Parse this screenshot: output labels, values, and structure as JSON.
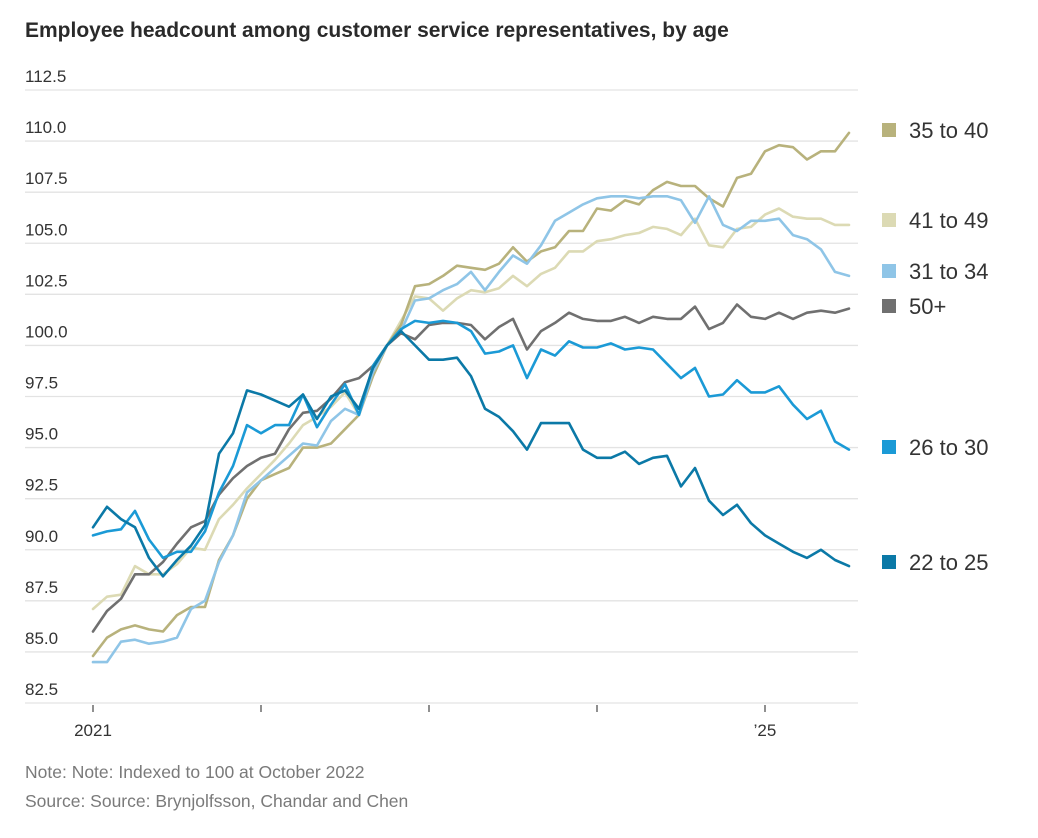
{
  "chart_data": {
    "type": "line",
    "title": "Employee headcount among customer service representatives, by age",
    "xlabel": "",
    "ylabel": "",
    "ylim": [
      82.5,
      112.5
    ],
    "yticks": [
      112.5,
      110.0,
      107.5,
      105.0,
      102.5,
      100.0,
      97.5,
      95.0,
      92.5,
      90.0,
      87.5,
      85.0,
      82.5
    ],
    "ytick_labels": [
      "112.5",
      "110.0",
      "107.5",
      "105.0",
      "102.5",
      "100.0",
      "97.5",
      "95.0",
      "92.5",
      "90.0",
      "87.5",
      "85.0",
      "82.5"
    ],
    "x_frequency": "monthly",
    "x_start": "2021-01",
    "x_end": "2025-07",
    "xticks": [
      {
        "year": 2021,
        "label": "2021"
      },
      {
        "year": 2022,
        "label": ""
      },
      {
        "year": 2023,
        "label": ""
      },
      {
        "year": 2024,
        "label": ""
      },
      {
        "year": 2025,
        "label": "’25"
      }
    ],
    "grid": true,
    "legend_position": "right",
    "series": [
      {
        "name": "41 to 49",
        "color": "#dcdab4",
        "values": [
          87.1,
          87.7,
          87.8,
          89.2,
          88.8,
          88.8,
          89.3,
          90.1,
          90.0,
          91.5,
          92.2,
          93.0,
          93.7,
          94.4,
          95.2,
          96.1,
          96.5,
          97.0,
          97.7,
          96.6,
          99.0,
          100.0,
          101.2,
          102.4,
          102.3,
          101.7,
          102.3,
          102.7,
          102.6,
          102.8,
          103.4,
          102.9,
          103.5,
          103.8,
          104.6,
          104.6,
          105.1,
          105.2,
          105.4,
          105.5,
          105.8,
          105.7,
          105.4,
          106.2,
          104.9,
          104.8,
          105.7,
          105.8,
          106.4,
          106.7,
          106.3,
          106.2,
          106.2,
          105.9,
          105.9
        ]
      },
      {
        "name": "35 to 40",
        "color": "#b8b27c",
        "values": [
          84.8,
          85.7,
          86.1,
          86.3,
          86.1,
          86.0,
          86.8,
          87.2,
          87.2,
          89.5,
          90.7,
          92.5,
          93.4,
          93.7,
          94.0,
          95.0,
          95.0,
          95.2,
          95.9,
          96.6,
          98.5,
          100.0,
          101.0,
          102.9,
          103.0,
          103.4,
          103.9,
          103.8,
          103.7,
          104.0,
          104.8,
          104.1,
          104.6,
          104.8,
          105.6,
          105.6,
          106.7,
          106.6,
          107.1,
          106.9,
          107.6,
          108.0,
          107.8,
          107.8,
          107.2,
          106.8,
          108.2,
          108.4,
          109.5,
          109.8,
          109.7,
          109.1,
          109.5,
          109.5,
          110.4
        ]
      },
      {
        "name": "31 to 34",
        "color": "#8fc5e7",
        "values": [
          84.5,
          84.5,
          85.5,
          85.6,
          85.4,
          85.5,
          85.7,
          87.1,
          87.5,
          89.4,
          90.7,
          92.8,
          93.4,
          94.0,
          94.6,
          95.2,
          95.1,
          96.3,
          96.9,
          96.6,
          98.7,
          100.0,
          100.7,
          102.2,
          102.3,
          102.7,
          103.0,
          103.6,
          102.7,
          103.6,
          104.4,
          104.0,
          104.9,
          106.1,
          106.5,
          106.9,
          107.2,
          107.3,
          107.3,
          107.2,
          107.3,
          107.3,
          107.1,
          106.0,
          107.3,
          105.9,
          105.6,
          106.1,
          106.1,
          106.2,
          105.4,
          105.2,
          104.7,
          103.6,
          103.4
        ]
      },
      {
        "name": "50+",
        "color": "#707070",
        "values": [
          86.0,
          87.0,
          87.6,
          88.8,
          88.8,
          89.4,
          90.3,
          91.1,
          91.4,
          92.7,
          93.5,
          94.1,
          94.5,
          94.7,
          95.9,
          96.7,
          96.8,
          97.4,
          98.2,
          98.4,
          99.0,
          100.0,
          100.6,
          100.3,
          101.0,
          101.1,
          101.1,
          101.0,
          100.3,
          100.9,
          101.3,
          99.8,
          100.7,
          101.1,
          101.6,
          101.3,
          101.2,
          101.2,
          101.4,
          101.1,
          101.4,
          101.3,
          101.3,
          101.9,
          100.8,
          101.1,
          102.0,
          101.4,
          101.3,
          101.6,
          101.3,
          101.6,
          101.7,
          101.6,
          101.8
        ]
      },
      {
        "name": "26 to 30",
        "color": "#1b9ad6",
        "values": [
          90.7,
          90.9,
          91.0,
          91.9,
          90.5,
          89.6,
          89.9,
          89.9,
          90.9,
          92.8,
          94.1,
          96.1,
          95.7,
          96.1,
          96.1,
          97.6,
          96.0,
          97.1,
          98.1,
          96.6,
          99.0,
          100.0,
          100.8,
          101.2,
          101.1,
          101.2,
          101.1,
          100.7,
          99.6,
          99.7,
          100.0,
          98.4,
          99.8,
          99.5,
          100.2,
          99.9,
          99.9,
          100.1,
          99.8,
          99.9,
          99.8,
          99.1,
          98.4,
          98.9,
          97.5,
          97.6,
          98.3,
          97.7,
          97.7,
          98.0,
          97.1,
          96.4,
          96.8,
          95.3,
          94.9
        ]
      },
      {
        "name": "22 to 25",
        "color": "#0b79a7",
        "values": [
          91.1,
          92.1,
          91.5,
          91.1,
          89.6,
          88.7,
          89.5,
          90.2,
          91.2,
          94.7,
          95.7,
          97.8,
          97.6,
          97.3,
          97.0,
          97.6,
          96.4,
          97.5,
          97.8,
          96.9,
          98.9,
          100.0,
          100.7,
          100.0,
          99.3,
          99.3,
          99.4,
          98.5,
          96.9,
          96.5,
          95.8,
          94.9,
          96.2,
          96.2,
          96.2,
          94.9,
          94.5,
          94.5,
          94.8,
          94.2,
          94.5,
          94.6,
          93.1,
          94.0,
          92.4,
          91.7,
          92.2,
          91.3,
          90.7,
          90.3,
          89.9,
          89.6,
          90.0,
          89.5,
          89.2
        ]
      }
    ],
    "legend": [
      {
        "name": "35 to 40",
        "color": "#b8b27c"
      },
      {
        "name": "41 to 49",
        "color": "#dcdab4"
      },
      {
        "name": "31 to 34",
        "color": "#8fc5e7"
      },
      {
        "name": "50+",
        "color": "#707070"
      },
      {
        "name": "26 to 30",
        "color": "#1b9ad6"
      },
      {
        "name": "22 to 25",
        "color": "#0b79a7"
      }
    ],
    "notes": [
      "Note: Note: Indexed to 100 at October 2022",
      "Source: Source: Brynjolfsson, Chandar and Chen"
    ]
  }
}
